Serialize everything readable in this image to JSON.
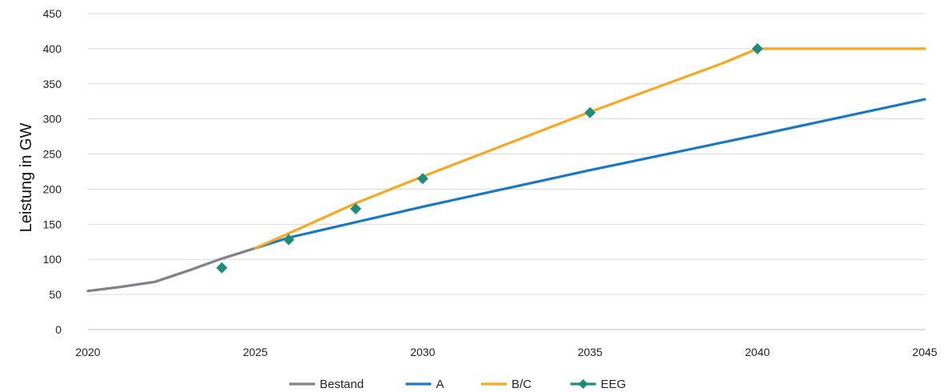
{
  "chart_data": {
    "type": "line",
    "title": "",
    "xlabel": "",
    "ylabel": "Leistung in GW",
    "xlim": [
      2020,
      2045
    ],
    "ylim": [
      0,
      450
    ],
    "x_ticks": [
      2020,
      2025,
      2030,
      2035,
      2040,
      2045
    ],
    "y_ticks": [
      0,
      50,
      100,
      150,
      200,
      250,
      300,
      350,
      400,
      450
    ],
    "grid": "horizontal",
    "legend_position": "bottom",
    "series": [
      {
        "name": "Bestand",
        "color": "#7f8287",
        "marker": "none",
        "points": [
          [
            2020,
            55
          ],
          [
            2021,
            61
          ],
          [
            2022,
            68
          ],
          [
            2023,
            84
          ],
          [
            2024,
            101
          ],
          [
            2025,
            116
          ]
        ]
      },
      {
        "name": "A",
        "color": "#1a78c2",
        "marker": "none",
        "points": [
          [
            2025,
            116
          ],
          [
            2026,
            131
          ],
          [
            2030,
            175
          ],
          [
            2035,
            227
          ],
          [
            2040,
            277
          ],
          [
            2045,
            328
          ]
        ]
      },
      {
        "name": "B/C",
        "color": "#f7a823",
        "marker": "none",
        "points": [
          [
            2025,
            116
          ],
          [
            2026,
            137
          ],
          [
            2028,
            180
          ],
          [
            2030,
            218
          ],
          [
            2035,
            310
          ],
          [
            2039,
            380
          ],
          [
            2040,
            400
          ],
          [
            2045,
            400
          ]
        ]
      },
      {
        "name": "EEG",
        "color": "#1e8c78",
        "marker": "diamond",
        "line": false,
        "points": [
          [
            2024,
            88
          ],
          [
            2026,
            128
          ],
          [
            2028,
            172
          ],
          [
            2030,
            215
          ],
          [
            2035,
            309
          ],
          [
            2040,
            400
          ]
        ]
      }
    ]
  }
}
